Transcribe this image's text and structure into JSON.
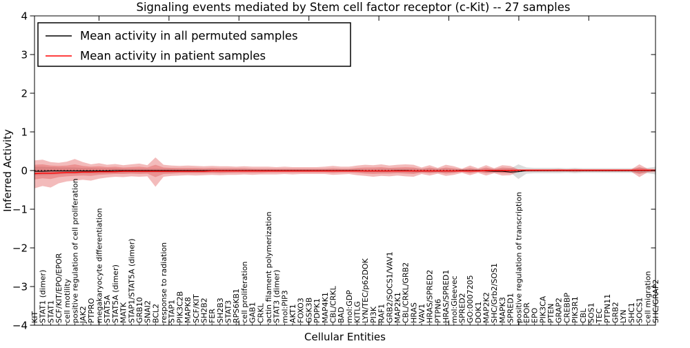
{
  "figure": {
    "title": "Signaling events mediated by Stem cell factor receptor (c-Kit) -- 27 samples",
    "xlabel": "Cellular Entities",
    "ylabel": "Inferred Activity"
  },
  "legend": {
    "items": [
      {
        "label": "Mean activity in all permuted samples",
        "color": "#000000"
      },
      {
        "label": "Mean activity in patient samples",
        "color": "#ff0000"
      }
    ]
  },
  "colors": {
    "patient_line": "#ff0000",
    "permuted_line": "#000000",
    "patient_band": "#dc3c3c",
    "permuted_band": "#808080",
    "frame": "#000000"
  },
  "chart_data": {
    "type": "area",
    "title": "Signaling events mediated by Stem cell factor receptor (c-Kit) -- 27 samples",
    "xlabel": "Cellular Entities",
    "ylabel": "Inferred Activity",
    "ylim": [
      -4,
      4
    ],
    "yticks": [
      "4",
      "3",
      "2",
      "1",
      "0",
      "−1",
      "−2",
      "−3",
      "−4"
    ],
    "ytick_values": [
      4,
      3,
      2,
      1,
      0,
      -1,
      -2,
      -3,
      -4
    ],
    "grid": false,
    "legend_position": "upper left",
    "zero_reference_line": 0,
    "categories": [
      "KIT",
      "STAT1 (dimer)",
      "STAT1",
      "SCF/KIT/EPO/EPOR",
      "cell motility",
      "positive regulation of cell proliferation",
      "JAK2",
      "PTPRO",
      "megakaryocyte differentiation",
      "STAT5A",
      "STAT5A (dimer)",
      "MATK",
      "STAP1/STAT5A (dimer)",
      "GRB10",
      "SNAI2",
      "BCL2",
      "response to radiation",
      "STAP1",
      "PIK3C2B",
      "MAPK8",
      "SCF/KIT",
      "SH2B2",
      "FER",
      "SH2B3",
      "STAT3",
      "RPS6KB1",
      "cell proliferation",
      "GAB1",
      "CRKL",
      "actin filament polymerization",
      "STAT3 (dimer)",
      "mol:PIP3",
      "AKT1",
      "FOXO3",
      "GSK3B",
      "PDPK1",
      "MAP4K1",
      "CBL/CRKL",
      "BAD",
      "mol:GDP",
      "KITLG",
      "LYN/TEC/p62DOK",
      "PI3K",
      "RAF1",
      "GRB2/SOCS1/VAV1",
      "MAP2K1",
      "CBL/CRKL/GRB2",
      "HRAS",
      "VAV1",
      "HRAS/SPRED2",
      "PTPN6",
      "HRAS/SPRED1",
      "mol:Gleevec",
      "SPRED2",
      "GO:0007205",
      "DOK1",
      "MAP2K2",
      "SHC/Grb2/SOS1",
      "MAPK3",
      "SPRED1",
      "positive regulation of transcription",
      "EPOR",
      "EPO",
      "PIK3CA",
      "PTEN",
      "GRAP2",
      "CREBBP",
      "PIK3R1",
      "CBL",
      "SOS1",
      "TEC",
      "PTPN11",
      "GRB2",
      "LYN",
      "SHC1",
      "SOCS1",
      "cell migration",
      "SHC/GRAP2"
    ],
    "series": [
      {
        "name": "Mean activity in all permuted samples",
        "type": "line",
        "color": "#000000",
        "values": [
          -0.02,
          -0.02,
          -0.01,
          -0.01,
          -0.01,
          -0.01,
          -0.01,
          -0.01,
          -0.01,
          -0.01,
          0,
          0,
          0,
          0,
          0,
          0,
          0,
          0,
          0,
          0,
          0,
          0,
          0,
          0,
          0,
          0,
          0,
          0,
          0,
          0,
          0,
          0,
          0,
          0,
          0,
          0,
          0,
          0,
          0,
          0,
          0,
          -0.01,
          -0.01,
          -0.01,
          -0.01,
          0,
          0,
          -0.01,
          -0.01,
          -0.01,
          -0.01,
          -0.01,
          -0.01,
          0,
          0,
          0,
          -0.01,
          -0.02,
          -0.02,
          -0.04,
          -0.03,
          0,
          0,
          0,
          0,
          0,
          0,
          0,
          0,
          0,
          0,
          0,
          0,
          0,
          0,
          0,
          0,
          0
        ]
      },
      {
        "name": "Mean activity in patient samples",
        "type": "line",
        "color": "#ff0000",
        "values": [
          -0.08,
          -0.07,
          -0.07,
          -0.06,
          -0.05,
          -0.05,
          -0.04,
          -0.04,
          -0.03,
          -0.03,
          -0.03,
          -0.02,
          -0.02,
          -0.02,
          -0.02,
          -0.02,
          -0.02,
          -0.02,
          -0.02,
          -0.02,
          -0.02,
          -0.02,
          -0.01,
          -0.01,
          -0.01,
          -0.01,
          -0.01,
          -0.01,
          -0.01,
          -0.01,
          -0.01,
          -0.01,
          -0.01,
          -0.01,
          -0.01,
          -0.01,
          -0.01,
          -0.01,
          -0.01,
          -0.01,
          -0.01,
          -0.01,
          -0.01,
          -0.01,
          -0.01,
          -0.01,
          -0.01,
          -0.01,
          -0.01,
          -0.01,
          -0.01,
          -0.01,
          -0.01,
          -0.01,
          -0.01,
          -0.01,
          0,
          0,
          0,
          0,
          0.01,
          0.01,
          0.01,
          0.01,
          0.01,
          0.01,
          0.01,
          0.01,
          0.01,
          0.01,
          0.01,
          0.01,
          0.01,
          0.01,
          0.01,
          0.01,
          0.01,
          0.01
        ]
      }
    ],
    "bands": [
      {
        "name": "permuted-samples-range",
        "color": "#808080",
        "opacity": 0.28,
        "upper": [
          0.1,
          0.1,
          0.09,
          0.08,
          0.08,
          0.08,
          0.07,
          0.07,
          0.06,
          0.06,
          0.06,
          0.05,
          0.05,
          0.05,
          0.05,
          0.05,
          0.05,
          0.05,
          0.04,
          0.04,
          0.04,
          0.04,
          0.04,
          0.04,
          0.04,
          0.04,
          0.04,
          0.04,
          0.03,
          0.03,
          0.03,
          0.03,
          0.03,
          0.03,
          0.03,
          0.03,
          0.03,
          0.03,
          0.03,
          0.03,
          0.04,
          0.04,
          0.04,
          0.05,
          0.05,
          0.05,
          0.05,
          0.05,
          0.05,
          0.05,
          0.05,
          0.05,
          0.04,
          0.04,
          0.04,
          0.04,
          0.05,
          0.05,
          0.05,
          0.05,
          0.16,
          0.08,
          0.07,
          0.07,
          0.07,
          0.07,
          0.06,
          0.07,
          0.06,
          0.06,
          0.06,
          0.06,
          0.06,
          0.06,
          0.06,
          0.07,
          0.07,
          0.1
        ],
        "lower": [
          -0.12,
          -0.12,
          -0.11,
          -0.1,
          -0.09,
          -0.09,
          -0.08,
          -0.08,
          -0.08,
          -0.07,
          -0.07,
          -0.07,
          -0.06,
          -0.06,
          -0.06,
          -0.06,
          -0.06,
          -0.06,
          -0.05,
          -0.05,
          -0.05,
          -0.05,
          -0.05,
          -0.05,
          -0.05,
          -0.04,
          -0.04,
          -0.04,
          -0.04,
          -0.04,
          -0.04,
          -0.04,
          -0.04,
          -0.04,
          -0.04,
          -0.04,
          -0.04,
          -0.04,
          -0.04,
          -0.04,
          -0.04,
          -0.05,
          -0.05,
          -0.05,
          -0.05,
          -0.05,
          -0.05,
          -0.06,
          -0.05,
          -0.05,
          -0.06,
          -0.05,
          -0.05,
          -0.04,
          -0.05,
          -0.04,
          -0.05,
          -0.06,
          -0.05,
          -0.05,
          -0.22,
          -0.08,
          -0.07,
          -0.07,
          -0.07,
          -0.07,
          -0.06,
          -0.07,
          -0.06,
          -0.06,
          -0.06,
          -0.06,
          -0.06,
          -0.06,
          -0.06,
          -0.07,
          -0.07,
          -0.1
        ]
      },
      {
        "name": "patient-samples-range-outer",
        "color": "#dc3c3c",
        "opacity": 0.35,
        "upper": [
          0.26,
          0.28,
          0.22,
          0.2,
          0.23,
          0.3,
          0.22,
          0.16,
          0.19,
          0.15,
          0.17,
          0.14,
          0.16,
          0.18,
          0.14,
          0.34,
          0.15,
          0.13,
          0.12,
          0.13,
          0.12,
          0.11,
          0.12,
          0.11,
          0.11,
          0.1,
          0.11,
          0.1,
          0.1,
          0.1,
          0.09,
          0.1,
          0.09,
          0.09,
          0.09,
          0.09,
          0.1,
          0.12,
          0.1,
          0.1,
          0.13,
          0.15,
          0.14,
          0.16,
          0.13,
          0.15,
          0.16,
          0.15,
          0.08,
          0.14,
          0.07,
          0.15,
          0.11,
          0.05,
          0.13,
          0.06,
          0.14,
          0.06,
          0.14,
          0.12,
          0.03,
          0.03,
          0.03,
          0.03,
          0.03,
          0.04,
          0.03,
          0.04,
          0.03,
          0.03,
          0.03,
          0.03,
          0.03,
          0.03,
          0.03,
          0.16,
          0.05,
          0.04
        ],
        "lower": [
          -0.46,
          -0.4,
          -0.44,
          -0.33,
          -0.28,
          -0.26,
          -0.24,
          -0.26,
          -0.21,
          -0.18,
          -0.16,
          -0.17,
          -0.15,
          -0.16,
          -0.15,
          -0.42,
          -0.16,
          -0.14,
          -0.13,
          -0.12,
          -0.13,
          -0.12,
          -0.11,
          -0.12,
          -0.11,
          -0.11,
          -0.1,
          -0.11,
          -0.1,
          -0.1,
          -0.1,
          -0.09,
          -0.1,
          -0.09,
          -0.09,
          -0.09,
          -0.09,
          -0.11,
          -0.1,
          -0.09,
          -0.12,
          -0.14,
          -0.16,
          -0.14,
          -0.15,
          -0.13,
          -0.15,
          -0.16,
          -0.09,
          -0.13,
          -0.08,
          -0.14,
          -0.11,
          -0.06,
          -0.12,
          -0.06,
          -0.13,
          -0.07,
          -0.13,
          -0.12,
          -0.03,
          -0.03,
          -0.03,
          -0.03,
          -0.03,
          -0.03,
          -0.03,
          -0.04,
          -0.03,
          -0.03,
          -0.03,
          -0.03,
          -0.03,
          -0.03,
          -0.03,
          -0.17,
          -0.05,
          -0.04
        ]
      },
      {
        "name": "patient-samples-range-inner",
        "color": "#dc3c3c",
        "opacity": 0.32,
        "upper": [
          0.15,
          0.16,
          0.13,
          0.12,
          0.13,
          0.16,
          0.12,
          0.1,
          0.11,
          0.09,
          0.1,
          0.08,
          0.09,
          0.1,
          0.08,
          0.15,
          0.08,
          0.07,
          0.07,
          0.07,
          0.07,
          0.06,
          0.07,
          0.06,
          0.06,
          0.06,
          0.06,
          0.05,
          0.05,
          0.05,
          0.05,
          0.05,
          0.05,
          0.05,
          0.05,
          0.05,
          0.05,
          0.06,
          0.05,
          0.05,
          0.07,
          0.08,
          0.08,
          0.09,
          0.07,
          0.08,
          0.09,
          0.08,
          0.04,
          0.08,
          0.04,
          0.08,
          0.06,
          0.03,
          0.07,
          0.03,
          0.08,
          0.03,
          0.08,
          0.07,
          0.02,
          0.02,
          0.02,
          0.02,
          0.02,
          0.02,
          0.02,
          0.02,
          0.02,
          0.02,
          0.02,
          0.02,
          0.02,
          0.02,
          0.02,
          0.09,
          0.03,
          0.02
        ],
        "lower": [
          -0.23,
          -0.2,
          -0.22,
          -0.17,
          -0.15,
          -0.14,
          -0.13,
          -0.14,
          -0.11,
          -0.1,
          -0.09,
          -0.09,
          -0.08,
          -0.09,
          -0.08,
          -0.17,
          -0.09,
          -0.08,
          -0.07,
          -0.07,
          -0.07,
          -0.07,
          -0.06,
          -0.07,
          -0.06,
          -0.06,
          -0.06,
          -0.06,
          -0.06,
          -0.05,
          -0.05,
          -0.05,
          -0.05,
          -0.05,
          -0.05,
          -0.05,
          -0.05,
          -0.06,
          -0.05,
          -0.05,
          -0.06,
          -0.08,
          -0.09,
          -0.08,
          -0.08,
          -0.07,
          -0.08,
          -0.09,
          -0.05,
          -0.07,
          -0.04,
          -0.08,
          -0.06,
          -0.03,
          -0.07,
          -0.03,
          -0.07,
          -0.04,
          -0.07,
          -0.07,
          -0.02,
          -0.02,
          -0.02,
          -0.02,
          -0.02,
          -0.02,
          -0.02,
          -0.02,
          -0.02,
          -0.02,
          -0.02,
          -0.02,
          -0.02,
          -0.02,
          -0.02,
          -0.09,
          -0.03,
          -0.02
        ]
      }
    ]
  }
}
